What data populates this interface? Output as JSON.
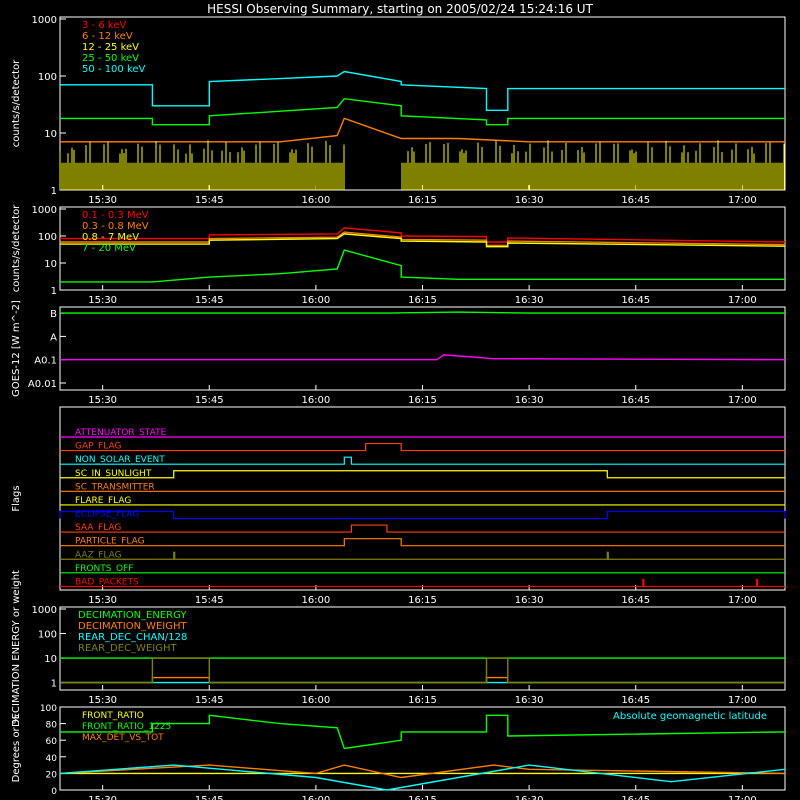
{
  "title": "HESSI Observing Summary, starting on 2005/02/24 15:24:16 UT",
  "time_ticks": [
    "15:30",
    "15:45",
    "16:00",
    "16:15",
    "16:30",
    "16:45",
    "17:00"
  ],
  "chart_data": [
    {
      "type": "line",
      "panel": "energy-bands",
      "ylabel": "counts/s/detector",
      "yscale": "log",
      "ylim": [
        1,
        1000
      ],
      "yticks": [
        "1",
        "10",
        "100",
        "1000"
      ],
      "legend_placement": "top-left",
      "series": [
        {
          "name": "3 - 6 keV",
          "color": "#ff0000",
          "level": 2,
          "style": "spiky",
          "t": [
            "15:24",
            "16:04",
            "16:04",
            "16:12",
            "16:12",
            "17:06"
          ],
          "v": [
            2,
            2,
            2,
            2,
            2,
            2
          ]
        },
        {
          "name": "6 - 12 keV",
          "color": "#ff8000",
          "t": [
            "15:24",
            "15:40",
            "15:55",
            "16:03",
            "16:04",
            "16:12",
            "16:20",
            "16:30",
            "17:06"
          ],
          "v": [
            7,
            7,
            7,
            9,
            18,
            8,
            8,
            7,
            7
          ]
        },
        {
          "name": "12 - 25 keV",
          "color": "#ffff00",
          "level": 3,
          "style": "spiky",
          "t": [
            "15:24",
            "17:06"
          ],
          "v": [
            3,
            3
          ]
        },
        {
          "name": "25 - 50 keV",
          "color": "#00ff00",
          "t": [
            "15:24",
            "15:37",
            "15:37",
            "15:45",
            "15:45",
            "16:03",
            "16:04",
            "16:12",
            "16:12",
            "16:24",
            "16:24",
            "16:27",
            "16:27",
            "17:06"
          ],
          "v": [
            18,
            18,
            14,
            14,
            20,
            28,
            40,
            30,
            20,
            17,
            14,
            14,
            18,
            18
          ]
        },
        {
          "name": "50 - 100 keV",
          "color": "#00ffff",
          "t": [
            "15:24",
            "15:37",
            "15:37",
            "15:45",
            "15:45",
            "15:55",
            "16:03",
            "16:04",
            "16:12",
            "16:12",
            "16:24",
            "16:24",
            "16:27",
            "16:27",
            "17:06"
          ],
          "v": [
            70,
            70,
            30,
            30,
            80,
            90,
            100,
            120,
            80,
            70,
            60,
            25,
            25,
            60,
            60
          ]
        }
      ]
    },
    {
      "type": "line",
      "panel": "high-energy",
      "ylabel": "counts/s/detector",
      "yscale": "log",
      "ylim": [
        1,
        1000
      ],
      "yticks": [
        "1",
        "10",
        "100",
        "1000"
      ],
      "legend_placement": "top-left",
      "series": [
        {
          "name": "0.1 - 0.3 MeV",
          "color": "#ff0000",
          "t": [
            "15:24",
            "15:45",
            "15:45",
            "16:03",
            "16:04",
            "16:12",
            "16:12",
            "16:24",
            "16:24",
            "16:27",
            "16:27",
            "17:06"
          ],
          "v": [
            80,
            80,
            110,
            120,
            200,
            130,
            100,
            95,
            60,
            60,
            85,
            60
          ]
        },
        {
          "name": "0.3 - 0.8 MeV",
          "color": "#ff8000",
          "t": [
            "15:24",
            "15:45",
            "15:45",
            "16:03",
            "16:04",
            "16:12",
            "16:12",
            "16:24",
            "16:24",
            "16:27",
            "16:27",
            "17:06"
          ],
          "v": [
            60,
            60,
            80,
            90,
            140,
            90,
            75,
            70,
            45,
            45,
            65,
            48
          ]
        },
        {
          "name": "0.8 - 7 MeV",
          "color": "#ffff00",
          "t": [
            "15:24",
            "15:45",
            "15:45",
            "16:03",
            "16:04",
            "16:12",
            "16:12",
            "16:24",
            "16:24",
            "16:27",
            "16:27",
            "17:06"
          ],
          "v": [
            50,
            50,
            70,
            80,
            120,
            80,
            65,
            60,
            40,
            40,
            55,
            42
          ]
        },
        {
          "name": "7 - 20 MeV",
          "color": "#00ff00",
          "t": [
            "15:24",
            "15:37",
            "15:45",
            "15:55",
            "16:03",
            "16:04",
            "16:12",
            "16:12",
            "16:20",
            "17:06"
          ],
          "v": [
            2,
            2,
            3,
            4,
            6,
            30,
            8,
            3,
            2.5,
            2.5
          ]
        }
      ]
    },
    {
      "type": "line",
      "panel": "goes",
      "ylabel": "GOES-12 [W m^-2]",
      "yscale": "log",
      "yticks": [
        "A0.01",
        "A0.1",
        "A",
        "B"
      ],
      "series": [
        {
          "name": "",
          "color": "#ff00ff",
          "t": [
            "15:24",
            "16:17",
            "16:18",
            "16:22",
            "16:25",
            "17:06"
          ],
          "v": [
            0.1,
            0.1,
            0.16,
            0.13,
            0.11,
            0.1
          ]
        },
        {
          "name": "",
          "color": "#00ff00",
          "t": [
            "15:24",
            "16:10",
            "16:20",
            "16:30",
            "17:06"
          ],
          "v": [
            10,
            10,
            11,
            10,
            10
          ]
        }
      ]
    },
    {
      "type": "line",
      "panel": "flags",
      "ylabel": "Flags",
      "series": [
        {
          "name": "ATTENUATOR_STATE",
          "color": "#ff00ff",
          "changes": []
        },
        {
          "name": "GAP_FLAG",
          "color": "#ff4000",
          "changes": [
            [
              "16:07",
              "16:12"
            ]
          ]
        },
        {
          "name": "NON_SOLAR_EVENT",
          "color": "#00ffff",
          "changes": [
            [
              "16:04",
              "16:05"
            ]
          ]
        },
        {
          "name": "SC_IN_SUNLIGHT",
          "color": "#ffff00",
          "changes": [
            [
              "15:40",
              "16:41"
            ]
          ]
        },
        {
          "name": "SC_TRANSMITTER",
          "color": "#ff8000",
          "changes": []
        },
        {
          "name": "FLARE_FLAG",
          "color": "#ffff00",
          "changes": []
        },
        {
          "name": "ECLIPSE_FLAG",
          "color": "#0000ff",
          "changes": [
            [
              "15:24",
              "15:40"
            ],
            [
              "16:41",
              "17:06"
            ]
          ]
        },
        {
          "name": "SAA_FLAG",
          "color": "#ff4000",
          "changes": [
            [
              "16:05",
              "16:10"
            ]
          ]
        },
        {
          "name": "PARTICLE_FLAG",
          "color": "#ff8000",
          "changes": [
            [
              "16:04",
              "16:12"
            ]
          ]
        },
        {
          "name": "AAZ_FLAG",
          "color": "#808000",
          "changes": [
            [
              "15:40",
              "15:40"
            ],
            [
              "16:41",
              "16:41"
            ]
          ]
        },
        {
          "name": "FRONTS_OFF",
          "color": "#00ff00",
          "changes": []
        },
        {
          "name": "BAD_PACKETS",
          "color": "#ff0000",
          "changes": [
            [
              "16:46",
              "16:46"
            ],
            [
              "17:02",
              "17:02"
            ]
          ]
        }
      ]
    },
    {
      "type": "line",
      "panel": "decimation",
      "ylabel": "DECIMATION ENERGY or weight",
      "yscale": "log",
      "ylim": [
        0.5,
        1000
      ],
      "yticks": [
        "1",
        "10",
        "100",
        "1000"
      ],
      "legend_placement": "top-left",
      "series": [
        {
          "name": "DECIMATION_ENERGY",
          "color": "#00ff00",
          "t": [
            "15:24",
            "15:37",
            "15:37",
            "15:45",
            "15:45",
            "16:24",
            "16:24",
            "16:27",
            "16:27",
            "17:06"
          ],
          "v": [
            10,
            10,
            10,
            10,
            10,
            10,
            10,
            10,
            10,
            10
          ]
        },
        {
          "name": "DECIMATION_WEIGHT",
          "color": "#ff8000",
          "t": [
            "15:24",
            "15:37",
            "15:37",
            "15:45",
            "15:45",
            "16:24",
            "16:24",
            "16:27",
            "16:27",
            "17:06"
          ],
          "v": [
            1,
            1,
            1.6,
            1.6,
            1,
            1,
            1.6,
            1.6,
            1,
            1
          ]
        },
        {
          "name": "REAR_DEC_CHAN/128",
          "color": "#00ffff",
          "t": [
            "15:24",
            "17:06"
          ],
          "v": [
            1,
            1
          ]
        },
        {
          "name": "REAR_DEC_WEIGHT",
          "color": "#808000",
          "t": [
            "15:24",
            "15:37",
            "15:37",
            "15:45",
            "15:45",
            "16:24",
            "16:24",
            "16:27",
            "16:27",
            "17:06"
          ],
          "v": [
            1,
            1,
            10,
            10,
            1,
            1,
            10,
            10,
            1,
            1
          ]
        }
      ]
    },
    {
      "type": "line",
      "panel": "ratios",
      "ylabel": "Degrees or %",
      "ylim": [
        0,
        100
      ],
      "yticks": [
        "0",
        "20",
        "40",
        "60",
        "80",
        "100"
      ],
      "annotation": "Absolute geomagnetic latitude",
      "legend_placement": "top-left",
      "series": [
        {
          "name": "FRONT_RATIO",
          "color": "#ffff00",
          "t": [
            "15:24",
            "17:06"
          ],
          "v": [
            20,
            20
          ]
        },
        {
          "name": "FRONT_RATIO_1225",
          "color": "#00ff00",
          "t": [
            "15:24",
            "15:37",
            "15:37",
            "15:45",
            "15:45",
            "15:55",
            "16:03",
            "16:04",
            "16:12",
            "16:12",
            "16:24",
            "16:24",
            "16:27",
            "16:27",
            "17:06"
          ],
          "v": [
            70,
            70,
            80,
            80,
            90,
            80,
            75,
            50,
            60,
            70,
            70,
            90,
            90,
            65,
            70
          ]
        },
        {
          "name": "MAX_DET_VS_TOT",
          "color": "#ff8000",
          "t": [
            "15:24",
            "15:45",
            "16:00",
            "16:04",
            "16:12",
            "16:25",
            "16:30",
            "17:06"
          ],
          "v": [
            20,
            30,
            20,
            30,
            15,
            30,
            25,
            20
          ]
        },
        {
          "name": "",
          "color": "#00ffff",
          "t": [
            "15:24",
            "15:40",
            "16:00",
            "16:10",
            "16:30",
            "16:50",
            "17:06"
          ],
          "v": [
            20,
            30,
            15,
            0,
            30,
            10,
            25
          ]
        }
      ]
    }
  ]
}
